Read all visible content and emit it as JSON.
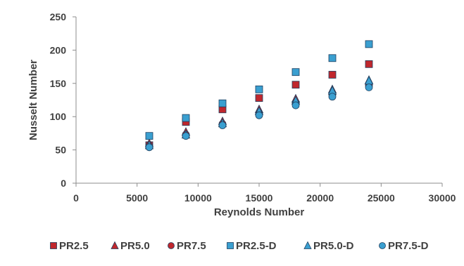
{
  "chart_data": {
    "type": "scatter",
    "xlabel": "Reynolds Number",
    "ylabel": "Nusselt Number",
    "xlim": [
      0,
      30000
    ],
    "ylim": [
      0,
      250
    ],
    "xticks": [
      0,
      5000,
      10000,
      15000,
      20000,
      25000,
      30000
    ],
    "yticks": [
      0,
      50,
      100,
      150,
      200,
      250
    ],
    "grid": false,
    "legend_placement": "bottom",
    "x": [
      6000,
      9000,
      12000,
      15000,
      18000,
      21000,
      24000
    ],
    "series": [
      {
        "name": "PR2.5",
        "marker": "square",
        "color": "#c0272d",
        "values": [
          57,
          92,
          111,
          128,
          148,
          163,
          179
        ]
      },
      {
        "name": "PR5.0",
        "marker": "triangle",
        "color": "#c0272d",
        "values": [
          60,
          77,
          93,
          111,
          127,
          141,
          155
        ]
      },
      {
        "name": "PR7.5",
        "marker": "circle",
        "color": "#c0272d",
        "values": [
          56,
          73,
          89,
          105,
          120,
          133,
          147
        ]
      },
      {
        "name": "PR2.5-D",
        "marker": "square",
        "color": "#3a9fd0",
        "values": [
          71,
          98,
          120,
          141,
          167,
          188,
          209
        ]
      },
      {
        "name": "PR5.0-D",
        "marker": "triangle",
        "color": "#3a9fd0",
        "values": [
          57,
          73,
          90,
          108,
          124,
          139,
          154
        ]
      },
      {
        "name": "PR7.5-D",
        "marker": "circle",
        "color": "#3a9fd0",
        "values": [
          54,
          71,
          87,
          102,
          117,
          130,
          144
        ]
      }
    ]
  }
}
